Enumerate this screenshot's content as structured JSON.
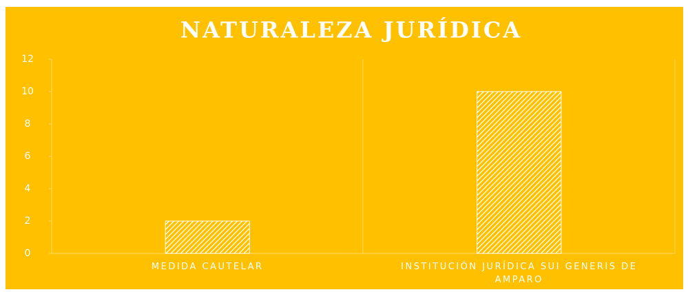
{
  "chart_data": {
    "type": "bar",
    "title": "NATURALEZA JURÍDICA",
    "categories": [
      "MEDIDA CAUTELAR",
      "INSTITUCIÓN JURÍDICA SUI GENERIS DE AMPARO"
    ],
    "values": [
      2,
      10
    ],
    "color": "#ffffff",
    "ylim": [
      0,
      12
    ],
    "yticks": [
      0,
      2,
      4,
      6,
      8,
      10,
      12
    ],
    "grid": false
  }
}
